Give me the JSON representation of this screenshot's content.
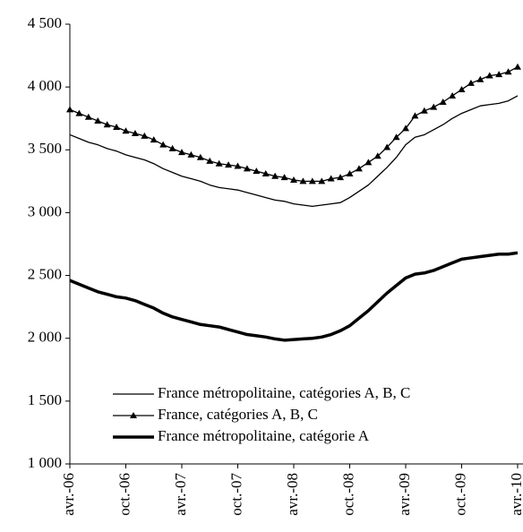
{
  "chart_data": {
    "type": "line",
    "categories": [
      "avr.-06",
      null,
      null,
      null,
      null,
      null,
      "oct.-06",
      null,
      null,
      null,
      null,
      null,
      "avr.-07",
      null,
      null,
      null,
      null,
      null,
      "oct.-07",
      null,
      null,
      null,
      null,
      null,
      "avr.-08",
      null,
      null,
      null,
      null,
      null,
      "oct.-08",
      null,
      null,
      null,
      null,
      null,
      "avr.-09",
      null,
      null,
      null,
      null,
      null,
      "oct.-09",
      null,
      null,
      null,
      null,
      null,
      "avr.-10"
    ],
    "series": [
      {
        "name": "France métropolitaine, catégories A, B, C",
        "color": "#000000",
        "line_width": 1.3,
        "marker": "none",
        "values": [
          3620,
          3590,
          3560,
          3540,
          3510,
          3490,
          3460,
          3440,
          3420,
          3390,
          3350,
          3320,
          3290,
          3270,
          3250,
          3220,
          3200,
          3190,
          3180,
          3160,
          3140,
          3120,
          3100,
          3090,
          3070,
          3060,
          3050,
          3060,
          3070,
          3080,
          3120,
          3170,
          3220,
          3290,
          3360,
          3440,
          3540,
          3600,
          3620,
          3660,
          3700,
          3750,
          3790,
          3820,
          3850,
          3860,
          3870,
          3890,
          3930
        ]
      },
      {
        "name": "France, catégories A, B, C",
        "color": "#000000",
        "line_width": 1.3,
        "marker": "triangle",
        "values": [
          3820,
          3790,
          3760,
          3730,
          3700,
          3680,
          3650,
          3630,
          3610,
          3580,
          3540,
          3510,
          3480,
          3460,
          3440,
          3410,
          3390,
          3380,
          3370,
          3350,
          3330,
          3310,
          3290,
          3280,
          3260,
          3250,
          3250,
          3250,
          3270,
          3280,
          3310,
          3350,
          3400,
          3450,
          3520,
          3600,
          3670,
          3770,
          3810,
          3840,
          3880,
          3930,
          3980,
          4030,
          4060,
          4090,
          4100,
          4120,
          4160
        ]
      },
      {
        "name": "France métropolitaine, catégorie A",
        "color": "#000000",
        "line_width": 3.5,
        "marker": "none",
        "values": [
          2460,
          2430,
          2400,
          2370,
          2350,
          2330,
          2320,
          2300,
          2270,
          2240,
          2200,
          2170,
          2150,
          2130,
          2110,
          2100,
          2090,
          2070,
          2050,
          2030,
          2020,
          2010,
          1995,
          1985,
          1990,
          1995,
          2000,
          2010,
          2030,
          2060,
          2100,
          2160,
          2220,
          2290,
          2360,
          2420,
          2480,
          2510,
          2520,
          2540,
          2570,
          2600,
          2630,
          2640,
          2650,
          2660,
          2670,
          2670,
          2680
        ]
      }
    ],
    "ylim": [
      1000,
      4500
    ],
    "yticks": [
      {
        "value": 1000,
        "label": "1 000"
      },
      {
        "value": 1500,
        "label": "1 500"
      },
      {
        "value": 2000,
        "label": "2 000"
      },
      {
        "value": 2500,
        "label": "2 500"
      },
      {
        "value": 3000,
        "label": "3 000"
      },
      {
        "value": 3500,
        "label": "3 500"
      },
      {
        "value": 4000,
        "label": "4 000"
      },
      {
        "value": 4500,
        "label": "4 500"
      }
    ],
    "grid": false
  }
}
